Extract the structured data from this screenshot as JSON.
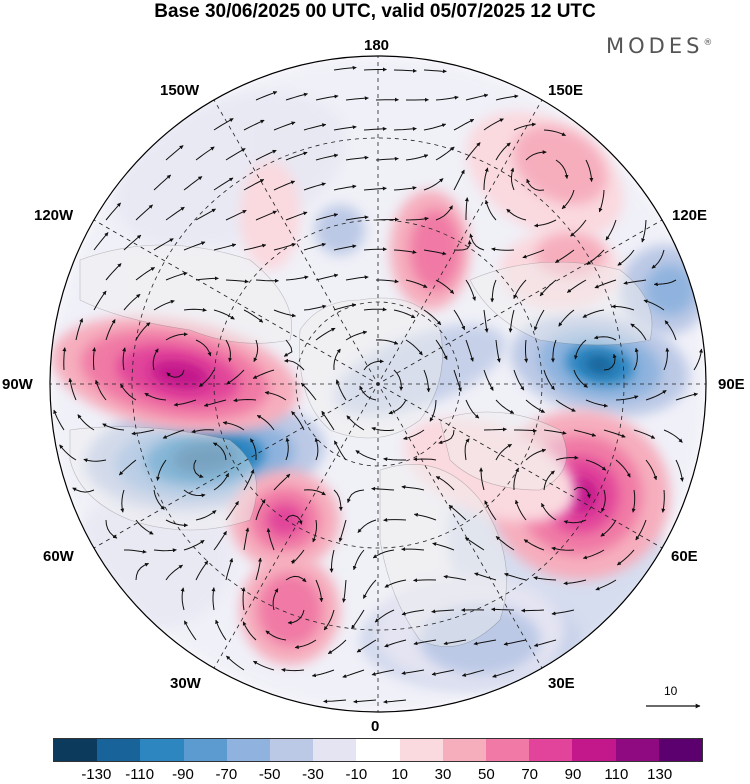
{
  "title": "Base 30/06/2025 00 UTC, valid 05/07/2025 12 UTC",
  "logo": "MODES",
  "logo_mark": "®",
  "longitude_labels": {
    "top": "180",
    "bottom": "0",
    "left": "90W",
    "right": "90E",
    "upper_left_1": "150W",
    "upper_left_2": "120W",
    "upper_right_1": "150E",
    "upper_right_2": "120E",
    "lower_left_1": "60W",
    "lower_left_2": "30W",
    "lower_right_1": "60E",
    "lower_right_2": "30E"
  },
  "reference_vector": "10",
  "colors": {
    "palette": [
      "#0b3a5c",
      "#17639a",
      "#2e86c1",
      "#5b9bd0",
      "#8fb3de",
      "#bcc9e6",
      "#e4e4f2",
      "#ffffff",
      "#fad9df",
      "#f6aebd",
      "#f07aa5",
      "#e1449a",
      "#c3178c",
      "#8f0a80",
      "#5c0070"
    ],
    "land": "#f0f0f0",
    "coast": "#777777"
  },
  "colorbar_ticks": [
    "-130",
    "-110",
    "-90",
    "-70",
    "-50",
    "-30",
    "-10",
    "10",
    "30",
    "50",
    "70",
    "90",
    "110",
    "130"
  ]
}
